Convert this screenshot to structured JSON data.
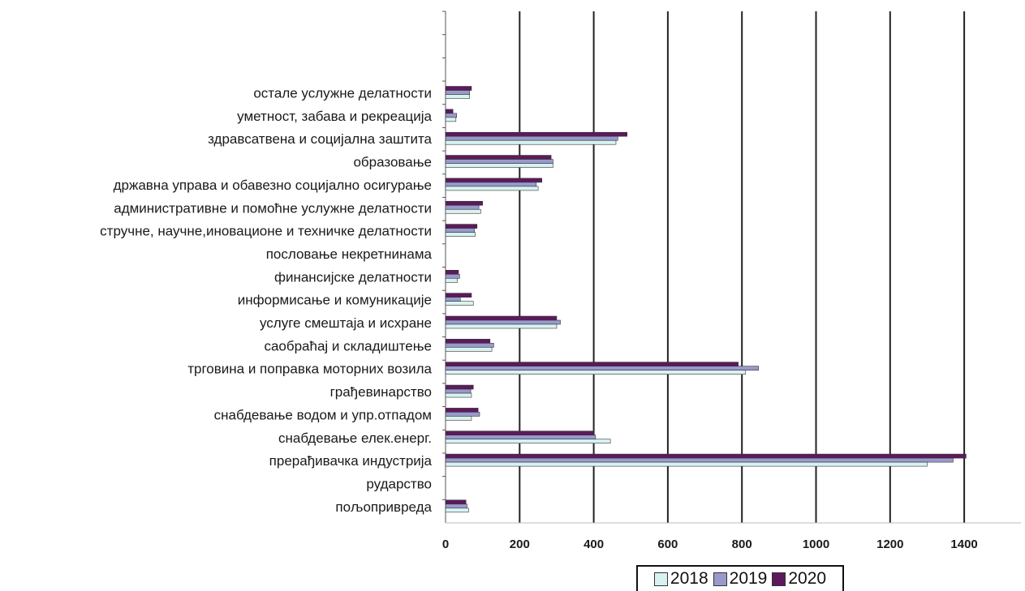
{
  "chart_data": {
    "type": "bar",
    "orientation": "horizontal",
    "categories": [
      "остале услужне делатности",
      "уметност, забава и рекреација",
      "здравсатвена и социјална заштита",
      "образовање",
      "државна управа и обавезно социјално осигурање",
      "административне и помоћне услужне делатности",
      "стручне, научне,иновационе и техничке делатности",
      "пословање некретнинама",
      "финансијске делатности",
      "информисање и комуникације",
      "услуге смештаја и исхране",
      "саобраћај и складиштење",
      "трговина и поправка моторних возила",
      "грађевинарство",
      "снабдевање водом и упр.отпадом",
      "снабдевање елек.енерг.",
      "прерађивачка индустрија",
      "рударство",
      "пољопривреда"
    ],
    "series": [
      {
        "name": "2018",
        "color": "#d8f2f2",
        "values": [
          65,
          28,
          460,
          290,
          250,
          95,
          80,
          0,
          32,
          75,
          300,
          125,
          810,
          70,
          70,
          445,
          1300,
          0,
          62
        ]
      },
      {
        "name": "2019",
        "color": "#9999cc",
        "values": [
          65,
          30,
          465,
          290,
          245,
          90,
          78,
          0,
          38,
          40,
          310,
          130,
          845,
          68,
          92,
          405,
          1370,
          0,
          58
        ]
      },
      {
        "name": "2020",
        "color": "#5c1a5c",
        "values": [
          70,
          20,
          490,
          285,
          260,
          100,
          85,
          0,
          35,
          70,
          300,
          120,
          790,
          75,
          88,
          400,
          1405,
          0,
          55
        ]
      }
    ],
    "xlim": [
      0,
      1500
    ],
    "xticks": [
      "0",
      "200",
      "400",
      "600",
      "800",
      "1000",
      "1200",
      "1400"
    ],
    "grid": true,
    "legend": "bottom",
    "title": "",
    "xlabel": "",
    "ylabel": ""
  }
}
